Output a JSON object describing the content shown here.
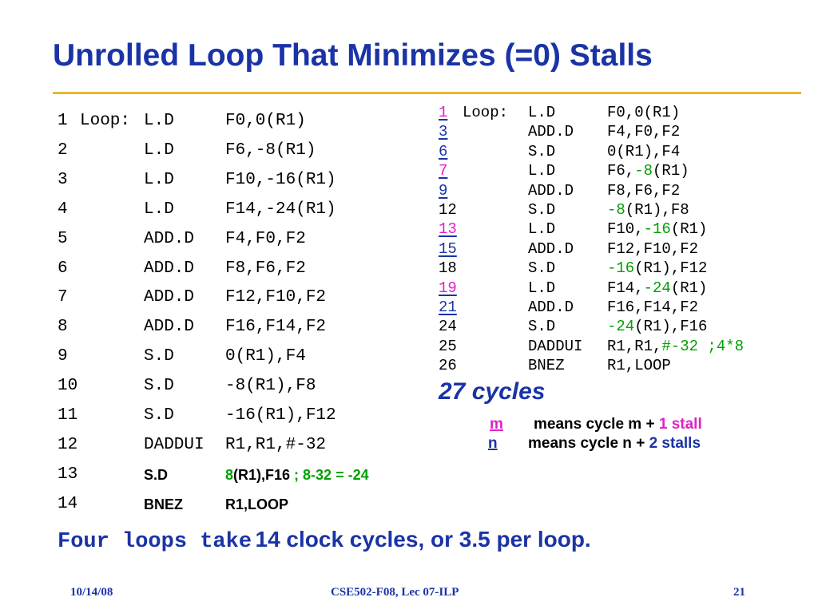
{
  "title": "Unrolled Loop That Minimizes (=0) Stalls",
  "left_listing": [
    {
      "num": "1",
      "label": "Loop:",
      "op": "L.D",
      "args": "F0,0(R1)"
    },
    {
      "num": "2",
      "label": "",
      "op": "L.D",
      "args": "F6,-8(R1)"
    },
    {
      "num": "3",
      "label": "",
      "op": "L.D",
      "args": "F10,-16(R1)"
    },
    {
      "num": "4",
      "label": "",
      "op": "L.D",
      "args": "F14,-24(R1)"
    },
    {
      "num": "5",
      "label": "",
      "op": "ADD.D",
      "args": "F4,F0,F2"
    },
    {
      "num": "6",
      "label": "",
      "op": "ADD.D",
      "args": "F8,F6,F2"
    },
    {
      "num": "7",
      "label": "",
      "op": "ADD.D",
      "args": "F12,F10,F2"
    },
    {
      "num": "8",
      "label": "",
      "op": "ADD.D",
      "args": "F16,F14,F2"
    },
    {
      "num": "9",
      "label": "",
      "op": "S.D",
      "args": "0(R1),F4"
    },
    {
      "num": "10",
      "label": "",
      "op": "S.D",
      "args": "-8(R1),F8"
    },
    {
      "num": "11",
      "label": "",
      "op": "S.D",
      "args": "-16(R1),F12"
    },
    {
      "num": "12",
      "label": "",
      "op": "DADDUI",
      "args": "R1,R1,#-32"
    },
    {
      "num": "13",
      "label": "",
      "op": "S.D",
      "args_green": "8",
      "args_rest": "(R1),F16",
      "comment": "; 8-32 = -24"
    },
    {
      "num": "14",
      "label": "",
      "op": "BNEZ",
      "args": "R1,LOOP"
    }
  ],
  "right_listing": [
    {
      "num": "1",
      "stall": 1,
      "label": "Loop:",
      "op": "L.D",
      "args": [
        "F0,0(R1)"
      ]
    },
    {
      "num": "3",
      "stall": 2,
      "label": "",
      "op": "ADD.D",
      "args": [
        "F4,F0,F2"
      ]
    },
    {
      "num": "6",
      "stall": 2,
      "label": "",
      "op": "S.D",
      "args": [
        "0(R1),F4"
      ]
    },
    {
      "num": "7",
      "stall": 1,
      "label": "",
      "op": "L.D",
      "args": [
        "F6,",
        "-8",
        "(R1)"
      ]
    },
    {
      "num": "9",
      "stall": 2,
      "label": "",
      "op": "ADD.D",
      "args": [
        "F8,F6,F2"
      ]
    },
    {
      "num": "12",
      "stall": 0,
      "label": "",
      "op": "S.D",
      "args": [
        "",
        "-8",
        "(R1),F8"
      ]
    },
    {
      "num": "13",
      "stall": 1,
      "label": "",
      "op": "L.D",
      "args": [
        "F10,",
        "-16",
        "(R1)"
      ]
    },
    {
      "num": "15",
      "stall": 2,
      "label": "",
      "op": "ADD.D",
      "args": [
        "F12,F10,F2"
      ]
    },
    {
      "num": "18",
      "stall": 0,
      "label": "",
      "op": "S.D",
      "args": [
        "",
        "-16",
        "(R1),F12"
      ]
    },
    {
      "num": "19",
      "stall": 1,
      "label": "",
      "op": "L.D",
      "args": [
        "F14,",
        "-24",
        "(R1)"
      ]
    },
    {
      "num": "21",
      "stall": 2,
      "label": "",
      "op": "ADD.D",
      "args": [
        "F16,F14,F2"
      ]
    },
    {
      "num": "24",
      "stall": 0,
      "label": "",
      "op": "S.D",
      "args": [
        "",
        "-24",
        "(R1),F16"
      ]
    },
    {
      "num": "25",
      "stall": 0,
      "label": "",
      "op": "DADDUI",
      "args": [
        "R1,R1,",
        "#-32",
        "",
        " ;4*8"
      ]
    },
    {
      "num": "26",
      "stall": 0,
      "label": "",
      "op": "BNEZ",
      "args": [
        "R1,LOOP"
      ]
    }
  ],
  "cycles_label": "27 cycles",
  "legend": {
    "m_key": "m",
    "m_text": "means cycle m +",
    "m_stall": "1 stall",
    "n_key": "n",
    "n_text": "means cycle n +",
    "n_stall": "2 stalls"
  },
  "bottom": {
    "mono_part": "Four loops take",
    "sans_part": "14 clock cycles, or 3.5 per loop."
  },
  "footer": {
    "date": "10/14/08",
    "course": "CSE502-F08, Lec 07-ILP",
    "page": "21"
  },
  "colors": {
    "title_blue": "#1a33a6",
    "rule_gold": "#e8b830",
    "green": "#00a000",
    "magenta": "#e020c8"
  }
}
